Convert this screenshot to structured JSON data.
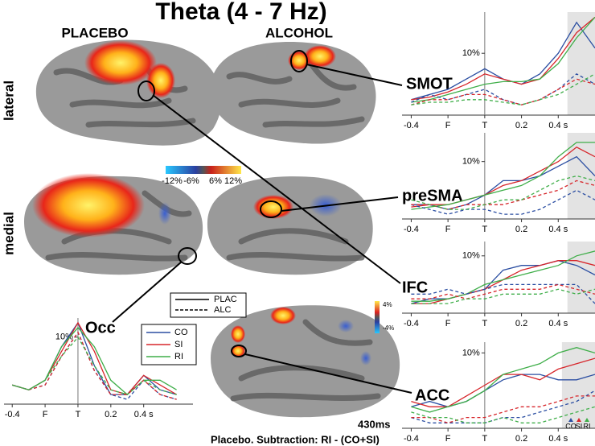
{
  "title": "Theta (4 - 7 Hz)",
  "columns": [
    "PLACEBO",
    "ALCOHOL"
  ],
  "rows": [
    "lateral",
    "medial"
  ],
  "colorbar": {
    "labels": [
      "-12%",
      "-6%",
      "6%",
      "12%"
    ]
  },
  "inset_colorbar": {
    "labels": [
      "4%",
      "-4%"
    ]
  },
  "regions": [
    "SMOT",
    "preSMA",
    "IFC",
    "Occ",
    "ACC"
  ],
  "legend_styles": [
    {
      "label": "PLAC",
      "dash": false
    },
    {
      "label": "ALC",
      "dash": true
    }
  ],
  "legend_colors": [
    {
      "label": "CO",
      "color": "#2b4ea2"
    },
    {
      "label": "SI",
      "color": "#d7262b"
    },
    {
      "label": "RI",
      "color": "#3fae49"
    }
  ],
  "time_label": "430ms",
  "caption": "Placebo. Subtraction: RI - (CO+SI)",
  "chart_data": [
    {
      "type": "line",
      "x": [
        -0.4,
        -0.3,
        -0.2,
        -0.1,
        0,
        0.1,
        0.2,
        0.3,
        0.4,
        0.5,
        0.6
      ],
      "xlim": [
        -0.45,
        0.6
      ],
      "ylim": [
        -2,
        18
      ],
      "xticks": [
        -0.4,
        {
          "value": -0.2,
          "label": "F"
        },
        {
          "value": 0,
          "label": "T"
        },
        0.2,
        {
          "value": 0.4,
          "label": "0.4 s"
        }
      ],
      "yticks": [
        {
          "value": 10,
          "label": "10%"
        }
      ],
      "shade": [
        0.45,
        0.6
      ],
      "series": [
        {
          "color": "#2b4ea2",
          "dash": false,
          "values": [
            1,
            2,
            3,
            5,
            7,
            5,
            4,
            6,
            10,
            16,
            11
          ]
        },
        {
          "color": "#d7262b",
          "dash": false,
          "values": [
            1,
            1.5,
            2.5,
            4,
            6,
            5,
            4,
            5,
            9,
            14,
            17
          ]
        },
        {
          "color": "#3fae49",
          "dash": false,
          "values": [
            0.5,
            1,
            2,
            3,
            4,
            4.5,
            4.5,
            5,
            8,
            13,
            17
          ]
        },
        {
          "color": "#2b4ea2",
          "dash": true,
          "values": [
            0.5,
            2,
            1,
            2,
            3,
            1,
            0,
            1,
            3,
            6,
            4
          ]
        },
        {
          "color": "#d7262b",
          "dash": true,
          "values": [
            0,
            1,
            1,
            2,
            2,
            1,
            0,
            1,
            3,
            5,
            4
          ]
        },
        {
          "color": "#3fae49",
          "dash": true,
          "values": [
            0,
            0.5,
            0.5,
            1,
            1,
            0.5,
            0,
            1,
            2,
            4,
            6
          ]
        }
      ]
    },
    {
      "type": "line",
      "x": [
        -0.4,
        -0.3,
        -0.2,
        -0.1,
        0,
        0.1,
        0.2,
        0.3,
        0.4,
        0.5,
        0.6
      ],
      "xlim": [
        -0.45,
        0.6
      ],
      "ylim": [
        -2,
        16
      ],
      "xticks": [
        -0.4,
        {
          "value": -0.2,
          "label": "F"
        },
        {
          "value": 0,
          "label": "T"
        },
        0.2,
        {
          "value": 0.4,
          "label": "0.4 s"
        }
      ],
      "yticks": [
        {
          "value": 10,
          "label": "10%"
        }
      ],
      "shade": [
        0.45,
        0.6
      ],
      "series": [
        {
          "color": "#2b4ea2",
          "dash": false,
          "values": [
            1,
            1,
            0,
            1,
            3,
            6,
            6,
            7,
            9,
            11,
            7
          ]
        },
        {
          "color": "#d7262b",
          "dash": false,
          "values": [
            0.5,
            1,
            1,
            2,
            3,
            5,
            6,
            8,
            10,
            13,
            11
          ]
        },
        {
          "color": "#3fae49",
          "dash": false,
          "values": [
            0,
            0.5,
            1,
            2,
            3,
            4,
            5,
            7,
            11,
            14,
            14
          ]
        },
        {
          "color": "#2b4ea2",
          "dash": true,
          "values": [
            1,
            0,
            -1,
            0,
            0,
            -1,
            -1,
            0,
            2,
            4,
            2
          ]
        },
        {
          "color": "#d7262b",
          "dash": true,
          "values": [
            1,
            1,
            0,
            1,
            1,
            1,
            2,
            3,
            4,
            6,
            5
          ]
        },
        {
          "color": "#3fae49",
          "dash": true,
          "values": [
            2,
            1,
            0,
            0,
            1,
            2,
            2,
            4,
            6,
            7,
            6
          ]
        }
      ]
    },
    {
      "type": "line",
      "x": [
        -0.4,
        -0.3,
        -0.2,
        -0.1,
        0,
        0.1,
        0.2,
        0.3,
        0.4,
        0.5,
        0.6
      ],
      "xlim": [
        -0.45,
        0.6
      ],
      "ylim": [
        -2,
        13
      ],
      "xticks": [
        -0.4,
        {
          "value": -0.2,
          "label": "F"
        },
        {
          "value": 0,
          "label": "T"
        },
        0.2,
        {
          "value": 0.4,
          "label": "0.4 s"
        }
      ],
      "yticks": [
        {
          "value": 10,
          "label": "10%"
        }
      ],
      "shade": [
        0.45,
        0.6
      ],
      "series": [
        {
          "color": "#2b4ea2",
          "dash": false,
          "values": [
            0,
            1,
            1,
            2,
            3,
            7,
            8,
            8,
            9,
            8,
            6
          ]
        },
        {
          "color": "#d7262b",
          "dash": false,
          "values": [
            0,
            0,
            1,
            2,
            3,
            5,
            7,
            8,
            9,
            9,
            8
          ]
        },
        {
          "color": "#3fae49",
          "dash": false,
          "values": [
            0.5,
            0.5,
            1,
            2,
            4,
            5,
            6,
            7,
            8,
            10,
            11
          ]
        },
        {
          "color": "#2b4ea2",
          "dash": true,
          "values": [
            2,
            2,
            3,
            2,
            3,
            4,
            4,
            4,
            4,
            4,
            0
          ]
        },
        {
          "color": "#d7262b",
          "dash": true,
          "values": [
            1,
            1,
            2,
            1,
            2,
            3,
            3,
            3,
            4,
            3,
            2
          ]
        },
        {
          "color": "#3fae49",
          "dash": true,
          "values": [
            0,
            0,
            0,
            1,
            1,
            2,
            2,
            2,
            3,
            2,
            3
          ]
        }
      ]
    },
    {
      "type": "line",
      "x": [
        -0.4,
        -0.3,
        -0.2,
        -0.1,
        0,
        0.1,
        0.2,
        0.3,
        0.4,
        0.5,
        0.6
      ],
      "xlim": [
        -0.45,
        0.6
      ],
      "ylim": [
        -4,
        12
      ],
      "xticks": [
        -0.4,
        {
          "value": -0.2,
          "label": "F"
        },
        {
          "value": 0,
          "label": "T"
        },
        0.2,
        {
          "value": 0.4,
          "label": "0.4 s"
        }
      ],
      "yticks": [
        {
          "value": 10,
          "label": "10%"
        }
      ],
      "shade": [
        0.42,
        0.6
      ],
      "markers": [
        "CO",
        "SI",
        "RI"
      ],
      "series": [
        {
          "color": "#2b4ea2",
          "dash": false,
          "values": [
            0,
            1,
            0,
            1,
            3,
            5,
            6,
            6,
            5,
            5,
            6
          ]
        },
        {
          "color": "#d7262b",
          "dash": false,
          "values": [
            1,
            0,
            0,
            2,
            4,
            6,
            6,
            5,
            7,
            8,
            9
          ]
        },
        {
          "color": "#3fae49",
          "dash": false,
          "values": [
            0,
            -1,
            0,
            1,
            3,
            6,
            7,
            8,
            10,
            11,
            10
          ]
        },
        {
          "color": "#2b4ea2",
          "dash": true,
          "values": [
            -2,
            -3,
            -3,
            -3,
            -3,
            -2,
            -2,
            -1,
            0,
            1,
            3
          ]
        },
        {
          "color": "#d7262b",
          "dash": true,
          "values": [
            -2,
            -2,
            -3,
            -2,
            -2,
            -1,
            0,
            0,
            1,
            2,
            2
          ]
        },
        {
          "color": "#3fae49",
          "dash": true,
          "values": [
            -1,
            -2,
            -2,
            -3,
            -3,
            -2,
            -3,
            -3,
            -2,
            -1,
            0
          ]
        }
      ]
    },
    {
      "type": "line",
      "x": [
        -0.4,
        -0.3,
        -0.2,
        -0.1,
        0,
        0.1,
        0.2,
        0.3,
        0.4,
        0.5,
        0.6
      ],
      "xlim": [
        -0.45,
        0.7
      ],
      "ylim": [
        -4,
        14
      ],
      "xticks": [
        -0.4,
        {
          "value": -0.2,
          "label": "F"
        },
        {
          "value": 0,
          "label": "T"
        },
        0.2,
        {
          "value": 0.4,
          "label": "0.4 s"
        }
      ],
      "yticks": [
        {
          "value": 10,
          "label": "10%"
        }
      ],
      "series": [
        {
          "color": "#2b4ea2",
          "dash": false,
          "values": [
            0,
            -1,
            1,
            8,
            13,
            4,
            -2,
            -2,
            2,
            -1,
            -2
          ]
        },
        {
          "color": "#d7262b",
          "dash": false,
          "values": [
            0,
            -1,
            1,
            7,
            13,
            7,
            -1,
            -2,
            2,
            0,
            -2
          ]
        },
        {
          "color": "#3fae49",
          "dash": false,
          "values": [
            0,
            -1,
            1,
            8,
            12,
            8,
            1,
            -2,
            1,
            1,
            -1
          ]
        },
        {
          "color": "#2b4ea2",
          "dash": true,
          "values": [
            0,
            -1,
            0,
            6,
            11,
            3,
            -2,
            -3,
            1,
            -2,
            -3
          ]
        },
        {
          "color": "#d7262b",
          "dash": true,
          "values": [
            0,
            -1,
            0,
            6,
            11,
            3,
            -2,
            -2,
            1,
            -2,
            -3
          ]
        },
        {
          "color": "#3fae49",
          "dash": true,
          "values": [
            0,
            -1,
            1,
            6,
            10,
            4,
            -1,
            -2,
            1,
            -1,
            -2
          ]
        }
      ]
    }
  ]
}
